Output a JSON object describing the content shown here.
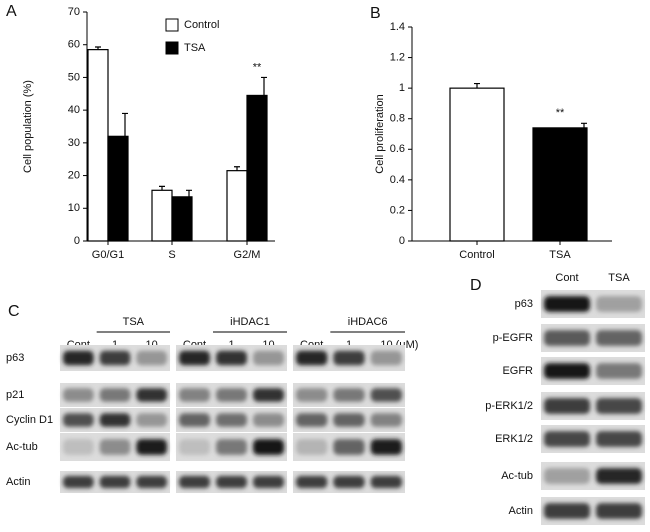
{
  "figure_labels": {
    "a": "A",
    "b": "B",
    "c": "C",
    "d": "D"
  },
  "chart_data": [
    {
      "type": "bar",
      "ylabel": "Cell population (%)",
      "categories": [
        "G0/G1",
        "S",
        "G2/M"
      ],
      "series": [
        {
          "name": "Control",
          "color": "#ffffff",
          "values": [
            58.5,
            15.5,
            21.5
          ],
          "errors": [
            0.8,
            1.2,
            1.2
          ]
        },
        {
          "name": "TSA",
          "color": "#000000",
          "values": [
            32,
            13.5,
            44.5
          ],
          "errors": [
            7,
            2,
            5.5
          ]
        }
      ],
      "ylim": [
        0,
        70
      ],
      "yticks": [
        0,
        10,
        20,
        30,
        40,
        50,
        60,
        70
      ],
      "annotations": [
        "**"
      ],
      "legend": "top"
    },
    {
      "type": "bar",
      "ylabel": "Cell proliferation",
      "categories": [
        "Control",
        "TSA"
      ],
      "values": [
        1,
        0.74
      ],
      "errors": [
        0.03,
        0.03
      ],
      "colors": [
        "#ffffff",
        "#000000"
      ],
      "ylim": [
        0,
        1.4
      ],
      "yticks": [
        0,
        0.2,
        0.4,
        0.6,
        0.8,
        1,
        1.2,
        1.4
      ],
      "annotations": [
        "**"
      ]
    }
  ],
  "blot_c": {
    "groups": [
      "TSA",
      "iHDAC1",
      "iHDAC6"
    ],
    "lanes": [
      "Cont",
      "1",
      "10",
      "Cont",
      "1",
      "10",
      "Cont",
      "1",
      "10 (μM)"
    ],
    "rows": [
      "p63",
      "p21",
      "Cyclin D1",
      "Ac-tub",
      "Actin"
    ]
  },
  "blot_d": {
    "lanes": [
      "Cont",
      "TSA"
    ],
    "rows": [
      "p63",
      "p-EGFR",
      "EGFR",
      "p-ERK1/2",
      "ERK1/2",
      "Ac-tub",
      "Actin"
    ]
  }
}
